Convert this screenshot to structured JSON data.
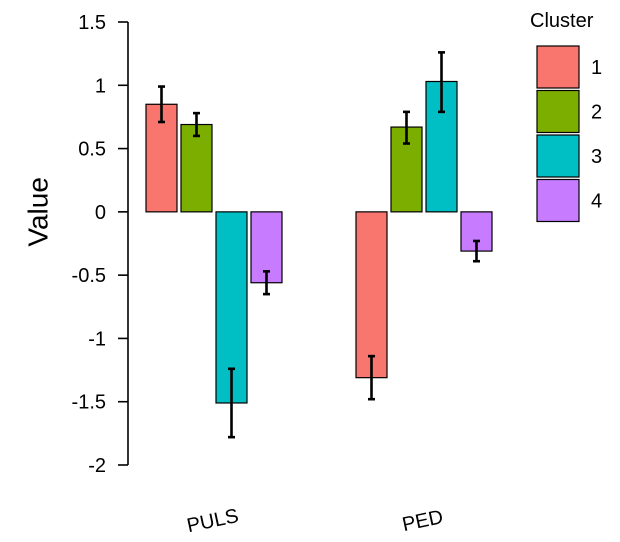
{
  "chart_data": {
    "type": "bar",
    "title": "",
    "xlabel": "",
    "ylabel": "Value",
    "ylim": [
      -2,
      1.5
    ],
    "yticks": [
      1.5,
      1,
      0.5,
      0,
      -0.5,
      -1,
      -1.5,
      -2
    ],
    "ytick_labels": [
      "1.5",
      "1",
      "0.5",
      "0",
      "-0.5",
      "-1",
      "-1.5",
      "-2"
    ],
    "categories": [
      "PULS",
      "PED"
    ],
    "grid": false,
    "legend": {
      "title": "Cluster",
      "placement": "right"
    },
    "series": [
      {
        "name": "1",
        "color": "#F8766D",
        "values": [
          0.85,
          -1.31
        ],
        "error": [
          [
            0.71,
            0.99
          ],
          [
            -1.48,
            -1.14
          ]
        ]
      },
      {
        "name": "2",
        "color": "#7CAE00",
        "values": [
          0.69,
          0.67
        ],
        "error": [
          [
            0.6,
            0.78
          ],
          [
            0.54,
            0.79
          ]
        ]
      },
      {
        "name": "3",
        "color": "#00BFC4",
        "values": [
          -1.51,
          1.03
        ],
        "error": [
          [
            -1.78,
            -1.24
          ],
          [
            0.79,
            1.26
          ]
        ]
      },
      {
        "name": "4",
        "color": "#C77CFF",
        "values": [
          -0.56,
          -0.31
        ],
        "error": [
          [
            -0.65,
            -0.47
          ],
          [
            -0.39,
            -0.23
          ]
        ]
      }
    ]
  }
}
